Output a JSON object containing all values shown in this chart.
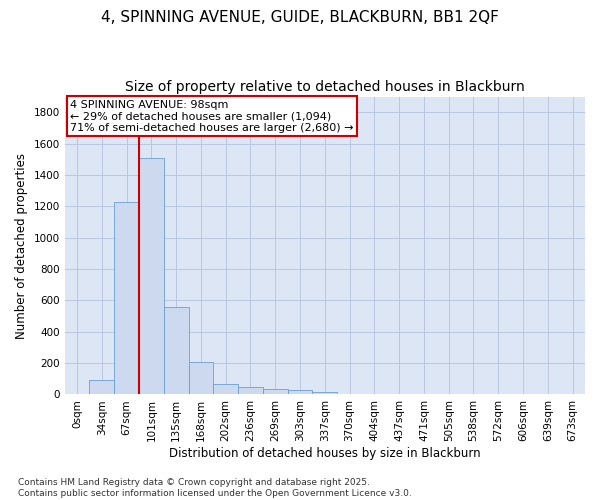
{
  "title": "4, SPINNING AVENUE, GUIDE, BLACKBURN, BB1 2QF",
  "subtitle": "Size of property relative to detached houses in Blackburn",
  "xlabel": "Distribution of detached houses by size in Blackburn",
  "ylabel": "Number of detached properties",
  "bar_color": "#ccd9ee",
  "bar_edge_color": "#6b9fd4",
  "background_color": "#ffffff",
  "plot_bg_color": "#dde6f5",
  "grid_color": "#b8c8e0",
  "categories": [
    "0sqm",
    "34sqm",
    "67sqm",
    "101sqm",
    "135sqm",
    "168sqm",
    "202sqm",
    "236sqm",
    "269sqm",
    "303sqm",
    "337sqm",
    "370sqm",
    "404sqm",
    "437sqm",
    "471sqm",
    "505sqm",
    "538sqm",
    "572sqm",
    "606sqm",
    "639sqm",
    "673sqm"
  ],
  "values": [
    0,
    90,
    1230,
    1510,
    560,
    210,
    65,
    45,
    35,
    27,
    15,
    0,
    0,
    0,
    0,
    0,
    0,
    0,
    0,
    0,
    0
  ],
  "ylim": [
    0,
    1900
  ],
  "yticks": [
    0,
    200,
    400,
    600,
    800,
    1000,
    1200,
    1400,
    1600,
    1800
  ],
  "vline_x": 2.5,
  "vline_color": "#cc0000",
  "annotation_text": "4 SPINNING AVENUE: 98sqm\n← 29% of detached houses are smaller (1,094)\n71% of semi-detached houses are larger (2,680) →",
  "footer": "Contains HM Land Registry data © Crown copyright and database right 2025.\nContains public sector information licensed under the Open Government Licence v3.0.",
  "title_fontsize": 11,
  "subtitle_fontsize": 10,
  "axis_label_fontsize": 8.5,
  "tick_fontsize": 7.5,
  "annotation_fontsize": 8,
  "footer_fontsize": 6.5
}
